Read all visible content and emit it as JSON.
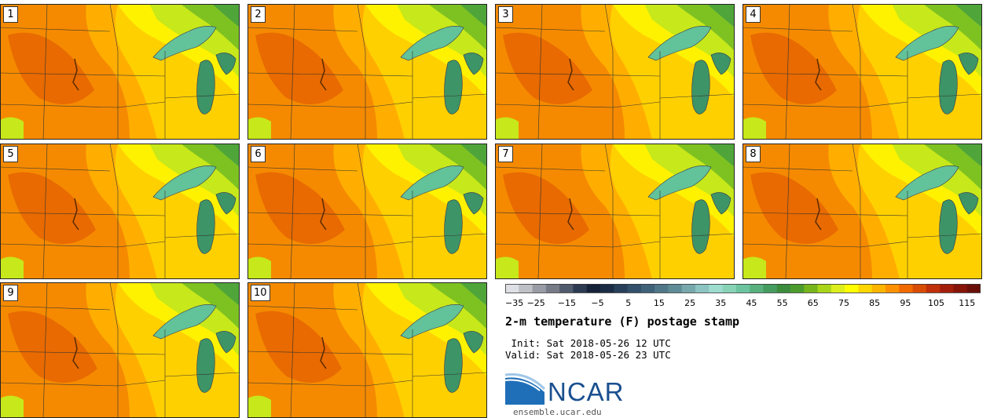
{
  "panels": [
    {
      "label": "1"
    },
    {
      "label": "2"
    },
    {
      "label": "3"
    },
    {
      "label": "4"
    },
    {
      "label": "5"
    },
    {
      "label": "6"
    },
    {
      "label": "7"
    },
    {
      "label": "8"
    },
    {
      "label": "9"
    },
    {
      "label": "10"
    }
  ],
  "colorbar": {
    "tick_labels": [
      "−35",
      "−25",
      "−15",
      "−5",
      "5",
      "15",
      "25",
      "35",
      "45",
      "55",
      "65",
      "75",
      "85",
      "95",
      "105",
      "115"
    ],
    "colors": [
      "#dfe0e5",
      "#bfc0c6",
      "#9a9ca5",
      "#777b88",
      "#505a6d",
      "#2c3a52",
      "#162238",
      "#1b2c44",
      "#273f58",
      "#32506a",
      "#3f6279",
      "#4f7787",
      "#5f8c96",
      "#77a8ac",
      "#8cc4c1",
      "#9ddccf",
      "#88d3b8",
      "#6cc49e",
      "#58b07f",
      "#459c5f",
      "#3c8c3d",
      "#4c9c2c",
      "#77b51c",
      "#a9d51a",
      "#dcee1c",
      "#ffff00",
      "#ffd600",
      "#ffb400",
      "#ff9000",
      "#f06a00",
      "#d84c05",
      "#c0300a",
      "#a41e0c",
      "#871409",
      "#6a0f08"
    ]
  },
  "header": {
    "title": "2-m temperature (F) postage stamp",
    "init": " Init: Sat 2018-05-26 12 UTC",
    "valid": "Valid: Sat 2018-05-26 23 UTC"
  },
  "logo": {
    "name": "NCAR",
    "url": "ensemble.ucar.edu"
  },
  "map_colors": {
    "hot_dark": "#e86a00",
    "hot": "#f58a00",
    "warm_orange": "#ffae00",
    "warm": "#ffd000",
    "mild": "#fff200",
    "cool_yellowgreen": "#c7e81a",
    "cool_green": "#7ec222",
    "green": "#4fa53a",
    "lake": "#62c29a",
    "lake_dark": "#3d9466"
  }
}
